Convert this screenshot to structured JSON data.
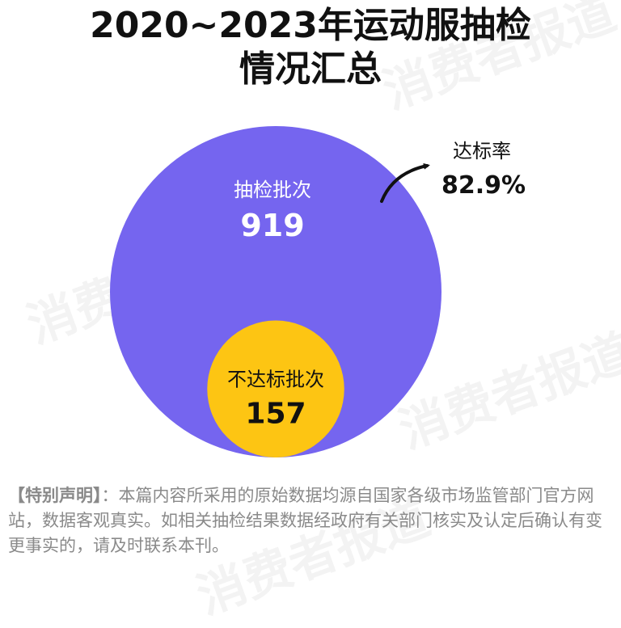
{
  "title": {
    "line1": "2020~2023年运动服抽检",
    "line2": "情况汇总"
  },
  "chart_data": {
    "type": "nested-circle",
    "segments": [
      {
        "label": "抽检批次",
        "value": 919,
        "color": "#7565ef",
        "label_color": "#ffffff"
      },
      {
        "label": "不达标批次",
        "value": 157,
        "color": "#fdc513",
        "label_color": "#111111"
      }
    ],
    "annotation": {
      "label": "达标率",
      "value": "82.9%"
    }
  },
  "watermark": {
    "text": "消费者报道"
  },
  "disclaimer": {
    "label": "【特别声明】",
    "text": "：本篇内容所采用的原始数据均源自国家各级市场监管部门官方网站，数据客观真实。如相关抽检结果数据经政府有关部门核实及认定后确认有变更事实的，请及时联系本刊。"
  }
}
